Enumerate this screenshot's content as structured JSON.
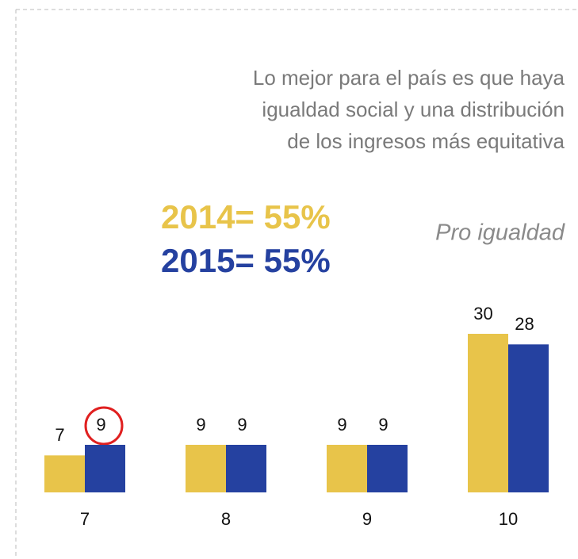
{
  "chart_data": {
    "type": "bar",
    "title": [
      "Lo mejor para el país es que haya",
      "igualdad social y una distribución",
      "de los ingresos más equitativa"
    ],
    "annotations": [
      {
        "text": "2014= 55%",
        "color": "#e8c44a"
      },
      {
        "text": "2015= 55%",
        "color": "#2541a0"
      },
      {
        "text": "Pro igualdad",
        "color": "#8a8a8a"
      }
    ],
    "categories": [
      "7",
      "8",
      "9",
      "10"
    ],
    "series": [
      {
        "name": "2014",
        "color": "#e8c44a",
        "values": [
          7,
          9,
          9,
          30
        ]
      },
      {
        "name": "2015",
        "color": "#2541a0",
        "values": [
          9,
          9,
          9,
          28
        ]
      }
    ]
  }
}
